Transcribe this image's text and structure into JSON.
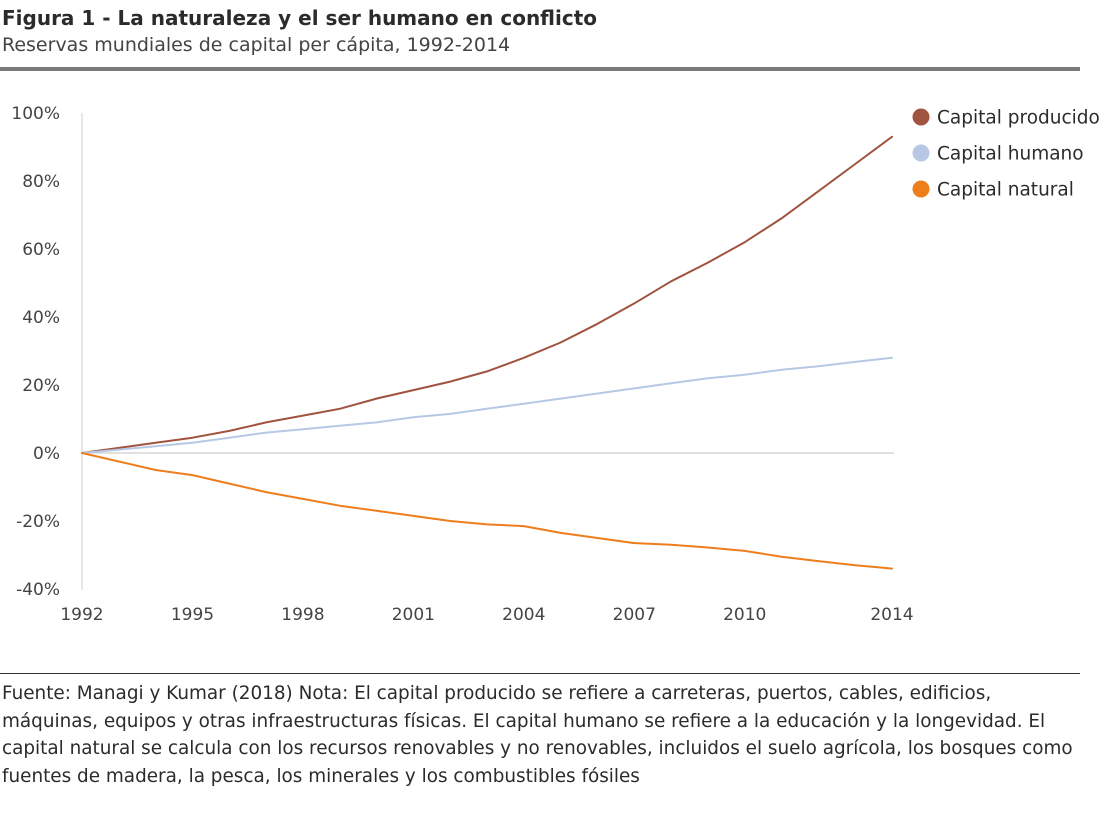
{
  "header": {
    "title": "Figura 1 - La naturaleza y el ser humano en conflicto",
    "subtitle": "Reservas mundiales de capital per cápita, 1992-2014"
  },
  "footnote": "Fuente: Managi y Kumar (2018) Nota: El capital producido se refiere a carreteras, puertos, cables, edificios, máquinas, equipos y otras infraestructuras físicas. El capital humano se refiere a la educación y la longevidad. El capital natural se calcula con los recursos renovables y no renovables, incluidos el suelo agrícola, los bosques como fuentes de madera, la pesca, los minerales y los combustibles fósiles",
  "chart_data": {
    "type": "line",
    "title": "Figura 1 - La naturaleza y el ser humano en conflicto",
    "subtitle": "Reservas mundiales de capital per cápita, 1992-2014",
    "xlabel": "",
    "ylabel": "",
    "x": [
      1992,
      1993,
      1994,
      1995,
      1996,
      1997,
      1998,
      1999,
      2000,
      2001,
      2002,
      2003,
      2004,
      2005,
      2006,
      2007,
      2008,
      2009,
      2010,
      2011,
      2012,
      2013,
      2014
    ],
    "xticks": [
      1992,
      1995,
      1998,
      2001,
      2004,
      2007,
      2010,
      2014
    ],
    "xtick_labels": [
      "1992",
      "1995",
      "1998",
      "2001",
      "2004",
      "2007",
      "2010",
      "2014"
    ],
    "xlim": [
      1992,
      2014
    ],
    "ylim": [
      -40,
      100
    ],
    "yticks": [
      -40,
      -20,
      0,
      20,
      40,
      60,
      80,
      100
    ],
    "ytick_labels": [
      "-40%",
      "-20%",
      "0%",
      "20%",
      "40%",
      "60%",
      "80%",
      "100%"
    ],
    "zero_line": true,
    "legend_position": "top-right",
    "series": [
      {
        "name": "Capital producido",
        "color": "#a0533f",
        "values": [
          0,
          1.5,
          3,
          4.5,
          6.5,
          9,
          11,
          13,
          16,
          18.5,
          21,
          24,
          28,
          32.5,
          38,
          44,
          50.5,
          56,
          62,
          69,
          77,
          85,
          93
        ]
      },
      {
        "name": "Capital humano",
        "color": "#b7c8e4",
        "values": [
          0,
          1,
          2,
          3,
          4.5,
          6,
          7,
          8,
          9,
          10.5,
          11.5,
          13,
          14.5,
          16,
          17.5,
          19,
          20.5,
          22,
          23,
          24.5,
          25.5,
          26.8,
          28
        ]
      },
      {
        "name": "Capital natural",
        "color": "#ee7d1c",
        "values": [
          0,
          -2.5,
          -5,
          -6.5,
          -9,
          -11.5,
          -13.5,
          -15.5,
          -17,
          -18.5,
          -20,
          -21,
          -21.5,
          -23.5,
          -25,
          -26.5,
          -27,
          -27.8,
          -28.8,
          -30.5,
          -31.8,
          -33,
          -34
        ]
      }
    ]
  }
}
